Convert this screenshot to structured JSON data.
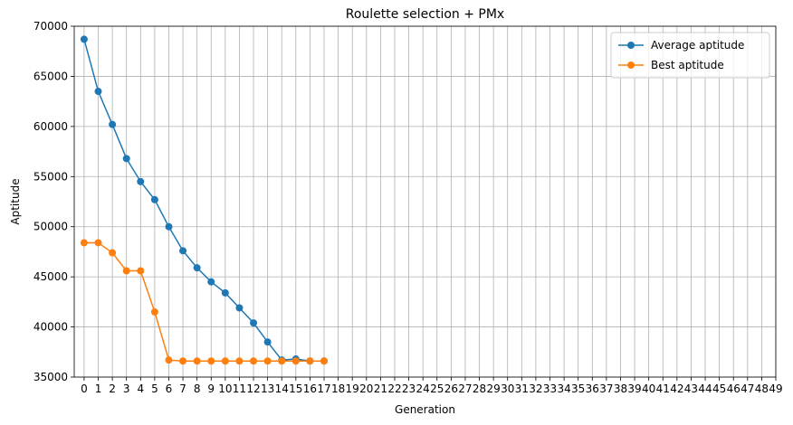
{
  "chart_data": {
    "type": "line",
    "title": "Roulette selection + PMx",
    "xlabel": "Generation",
    "ylabel": "Aptitude",
    "xlim": [
      -0.7,
      49
    ],
    "ylim": [
      35000,
      70000
    ],
    "x_ticks": [
      0,
      1,
      2,
      3,
      4,
      5,
      6,
      7,
      8,
      9,
      10,
      11,
      12,
      13,
      14,
      15,
      16,
      17,
      18,
      19,
      20,
      21,
      22,
      23,
      24,
      25,
      26,
      27,
      28,
      29,
      30,
      31,
      32,
      33,
      34,
      35,
      36,
      37,
      38,
      39,
      40,
      41,
      42,
      43,
      44,
      45,
      46,
      47,
      48,
      49
    ],
    "y_ticks": [
      35000,
      40000,
      45000,
      50000,
      55000,
      60000,
      65000,
      70000
    ],
    "grid": true,
    "legend_position": "top-right",
    "series": [
      {
        "name": "Average aptitude",
        "color": "#1f77b4",
        "marker": "circle",
        "x": [
          0,
          1,
          2,
          3,
          4,
          5,
          6,
          7,
          8,
          9,
          10,
          11,
          12,
          13,
          14,
          15,
          16,
          17
        ],
        "values": [
          68700,
          63500,
          60200,
          56800,
          54500,
          52700,
          50000,
          47600,
          45900,
          44500,
          43400,
          41900,
          40400,
          38500,
          36700,
          36800,
          36600,
          36600
        ]
      },
      {
        "name": "Best aptitude",
        "color": "#ff7f0e",
        "marker": "circle",
        "x": [
          0,
          1,
          2,
          3,
          4,
          5,
          6,
          7,
          8,
          9,
          10,
          11,
          12,
          13,
          14,
          15,
          16,
          17
        ],
        "values": [
          48400,
          48400,
          47400,
          45600,
          45600,
          41500,
          36700,
          36600,
          36600,
          36600,
          36600,
          36600,
          36600,
          36600,
          36600,
          36600,
          36600,
          36600
        ]
      }
    ]
  }
}
